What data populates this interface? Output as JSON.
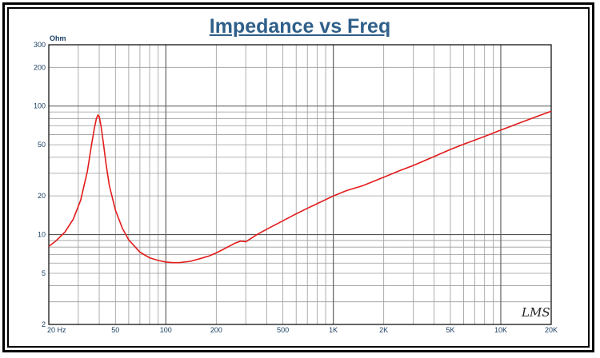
{
  "chart_data": {
    "type": "line",
    "title": "Impedance vs Freq",
    "ylabel": "Ohm",
    "xscale": "log",
    "yscale": "log",
    "xlim": [
      20,
      20000
    ],
    "ylim": [
      2,
      300
    ],
    "grid": true,
    "x_ticks": [
      {
        "value": 20,
        "label": "20  Hz"
      },
      {
        "value": 50,
        "label": "50"
      },
      {
        "value": 100,
        "label": "100"
      },
      {
        "value": 200,
        "label": "200"
      },
      {
        "value": 500,
        "label": "500"
      },
      {
        "value": 1000,
        "label": "1K"
      },
      {
        "value": 2000,
        "label": "2K"
      },
      {
        "value": 5000,
        "label": "5K"
      },
      {
        "value": 10000,
        "label": "10K"
      },
      {
        "value": 20000,
        "label": "20K"
      }
    ],
    "y_ticks": [
      {
        "value": 300,
        "label": "300"
      },
      {
        "value": 200,
        "label": "200"
      },
      {
        "value": 100,
        "label": "100"
      },
      {
        "value": 50,
        "label": "50"
      },
      {
        "value": 20,
        "label": "20"
      },
      {
        "value": 10,
        "label": "10"
      },
      {
        "value": 5,
        "label": "5"
      },
      {
        "value": 2,
        "label": "2"
      }
    ],
    "series": [
      {
        "color": "#e31b1b",
        "x": [
          20,
          22,
          25,
          28,
          31,
          34,
          36,
          37.5,
          38.5,
          39.3,
          40,
          41,
          42.5,
          44,
          46,
          50,
          55,
          60,
          70,
          80,
          90,
          100,
          110,
          120,
          140,
          160,
          180,
          200,
          230,
          260,
          280,
          300,
          350,
          400,
          500,
          600,
          700,
          800,
          1000,
          1200,
          1500,
          2000,
          2500,
          3000,
          4000,
          5000,
          6000,
          8000,
          10000,
          13000,
          16000,
          20000
        ],
        "y": [
          8.1,
          8.9,
          10.5,
          13.2,
          18.5,
          31,
          50,
          68,
          80,
          85,
          83,
          70,
          50,
          35,
          24,
          15.5,
          11.2,
          9.1,
          7.3,
          6.6,
          6.3,
          6.12,
          6.05,
          6.05,
          6.2,
          6.5,
          6.8,
          7.2,
          7.9,
          8.6,
          8.9,
          8.8,
          10.0,
          11.0,
          12.8,
          14.5,
          16.0,
          17.4,
          20.0,
          22.0,
          24.0,
          28.0,
          31.5,
          34.5,
          40.5,
          46.0,
          50.5,
          58.0,
          65.0,
          74.0,
          82.0,
          91.0
        ]
      }
    ]
  },
  "signature": "LMS"
}
